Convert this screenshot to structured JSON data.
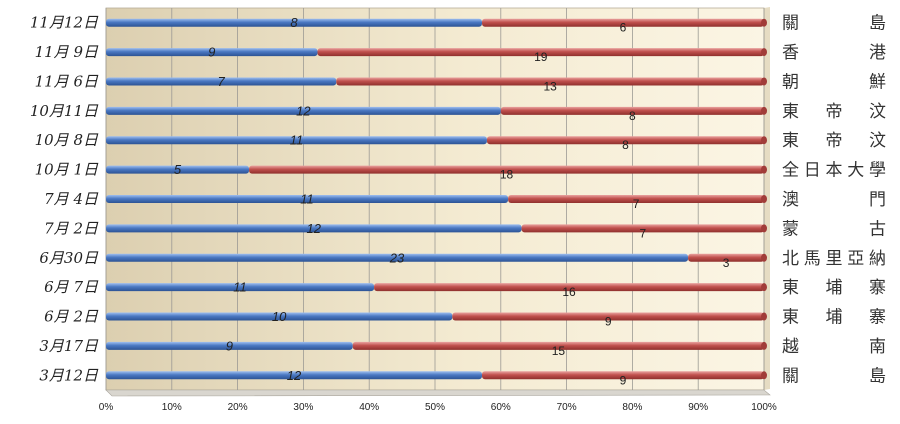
{
  "chart_data": {
    "type": "bar",
    "stacked": "percent",
    "orientation": "horizontal",
    "categories": [
      "11月12日",
      "11月 9日",
      "11月 6日",
      "10月11日",
      "10月 8日",
      "10月 1日",
      "7月 4日",
      "7月 2日",
      "6月30日",
      "6月 7日",
      "6月 2日",
      "3月17日",
      "3月12日"
    ],
    "opponents": [
      "關　　島",
      "香　　港",
      "朝　　鮮",
      "東　帝　汶",
      "東　帝　汶",
      "全日本大學",
      "澳　　門",
      "蒙　　古",
      "北馬里亞納",
      "東　埔　寨",
      "東　埔　寨",
      "越　　南",
      "關　　島"
    ],
    "series": [
      {
        "values": [
          8,
          9,
          7,
          12,
          11,
          5,
          11,
          12,
          23,
          11,
          10,
          9,
          12
        ]
      },
      {
        "values": [
          6,
          19,
          13,
          8,
          8,
          18,
          7,
          7,
          3,
          16,
          9,
          15,
          9
        ]
      }
    ],
    "xlim": [
      0,
      100
    ],
    "xticks": [
      "0%",
      "10%",
      "20%",
      "30%",
      "40%",
      "50%",
      "60%",
      "70%",
      "80%",
      "90%",
      "100%"
    ],
    "grid": true,
    "colors": {
      "series1": "#4a78c2",
      "series2": "#c0504d",
      "axis": "#888888"
    }
  }
}
